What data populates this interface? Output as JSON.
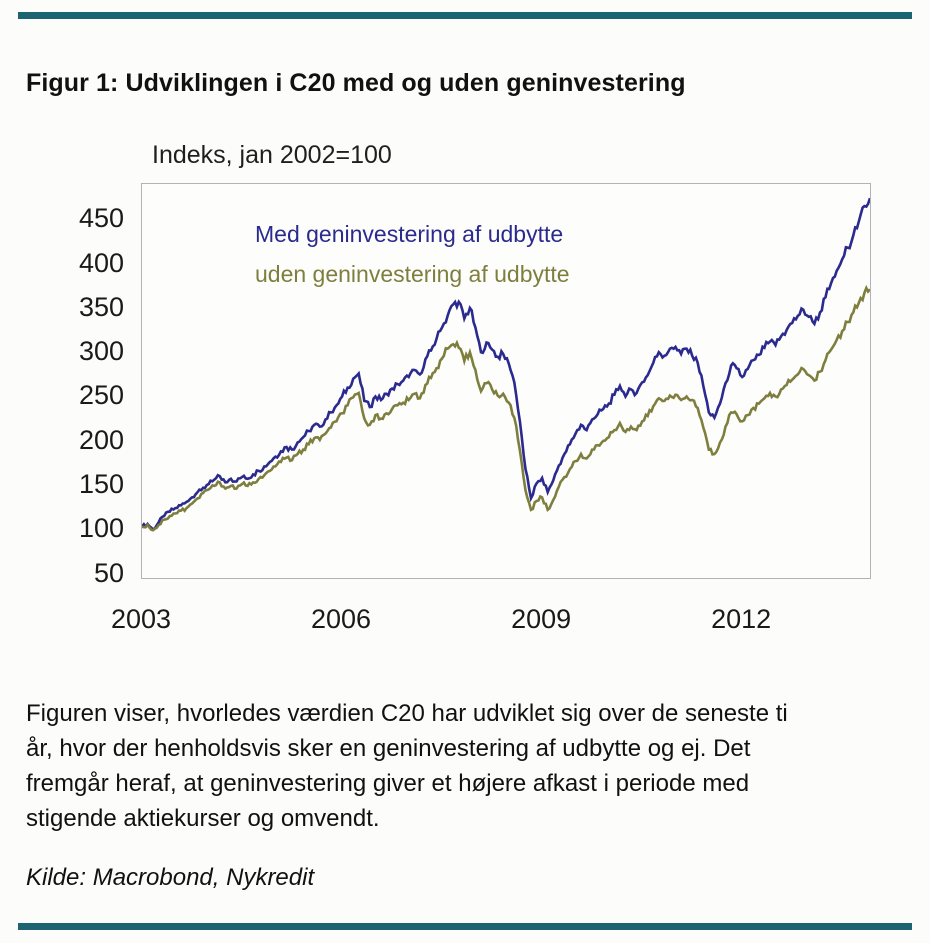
{
  "page": {
    "accent_bar_color": "#1d6472",
    "background": "#fcfcfa"
  },
  "header": {
    "title": "Figur 1: Udviklingen i C20 med og uden geninvestering"
  },
  "chart_data": {
    "type": "line",
    "title": "Figur 1: Udviklingen i C20 med og uden geninvestering",
    "unit_label": "Indeks, jan 2002=100",
    "xlabel": "",
    "ylabel": "",
    "x_start": 2003.0,
    "x_end": 2013.917,
    "xticks": [
      2003,
      2006,
      2009,
      2012
    ],
    "yticks": [
      50,
      100,
      150,
      200,
      250,
      300,
      350,
      400,
      450
    ],
    "ylim": [
      45,
      490
    ],
    "grid": false,
    "legend_position": "inside-top-left",
    "series": [
      {
        "name": "Med geninvestering af udbytte",
        "color": "#2b2a8e",
        "values": [
          103,
          106,
          100,
          108,
          115,
          120,
          124,
          127,
          131,
          136,
          142,
          147,
          151,
          156,
          160,
          153,
          157,
          154,
          159,
          157,
          162,
          166,
          171,
          176,
          182,
          188,
          193,
          190,
          198,
          204,
          211,
          218,
          216,
          224,
          232,
          240,
          250,
          260,
          270,
          276,
          245,
          238,
          250,
          246,
          253,
          259,
          264,
          268,
          272,
          280,
          275,
          292,
          302,
          315,
          328,
          341,
          354,
          357,
          338,
          350,
          328,
          300,
          311,
          303,
          295,
          298,
          287,
          266,
          222,
          168,
          135,
          152,
          158,
          142,
          155,
          172,
          185,
          196,
          208,
          218,
          212,
          224,
          230,
          236,
          242,
          252,
          262,
          250,
          258,
          254,
          266,
          274,
          288,
          300,
          296,
          304,
          306,
          298,
          304,
          296,
          288,
          262,
          232,
          226,
          242,
          265,
          285,
          282,
          272,
          281,
          291,
          297,
          305,
          312,
          308,
          318,
          325,
          333,
          341,
          348,
          340,
          332,
          345,
          362,
          378,
          392,
          405,
          418,
          432,
          448,
          465,
          474
        ]
      },
      {
        "name": "uden geninvestering af udbytte",
        "color": "#7e7f3e",
        "values": [
          103,
          105,
          99,
          105,
          111,
          115,
          118,
          121,
          124,
          129,
          135,
          141,
          145,
          149,
          153,
          146,
          149,
          146,
          151,
          149,
          153,
          157,
          161,
          166,
          171,
          176,
          181,
          178,
          185,
          190,
          196,
          203,
          201,
          208,
          215,
          222,
          231,
          240,
          249,
          254,
          225,
          218,
          229,
          225,
          231,
          236,
          240,
          243,
          246,
          253,
          248,
          263,
          271,
          282,
          293,
          304,
          309,
          305,
          290,
          300,
          280,
          256,
          265,
          258,
          251,
          253,
          243,
          226,
          189,
          144,
          122,
          132,
          136,
          122,
          133,
          148,
          159,
          168,
          177,
          185,
          180,
          190,
          195,
          200,
          204,
          212,
          220,
          210,
          216,
          212,
          222,
          228,
          239,
          248,
          245,
          251,
          252,
          246,
          250,
          246,
          237,
          215,
          190,
          185,
          198,
          216,
          232,
          230,
          222,
          229,
          237,
          242,
          248,
          254,
          250,
          258,
          263,
          269,
          275,
          281,
          274,
          268,
          278,
          291,
          303,
          314,
          324,
          334,
          345,
          356,
          367,
          371
        ]
      }
    ]
  },
  "note_lines": [
    "Figuren viser, hvorledes værdien C20 har udviklet sig over de seneste ti",
    "år, hvor der henholdsvis sker en geninvestering af udbytte og ej. Det",
    "fremgår heraf, at geninvestering giver et højere afkast i periode med",
    "stigende aktiekurser og omvendt."
  ],
  "source": {
    "text": "Kilde: Macrobond, Nykredit"
  }
}
